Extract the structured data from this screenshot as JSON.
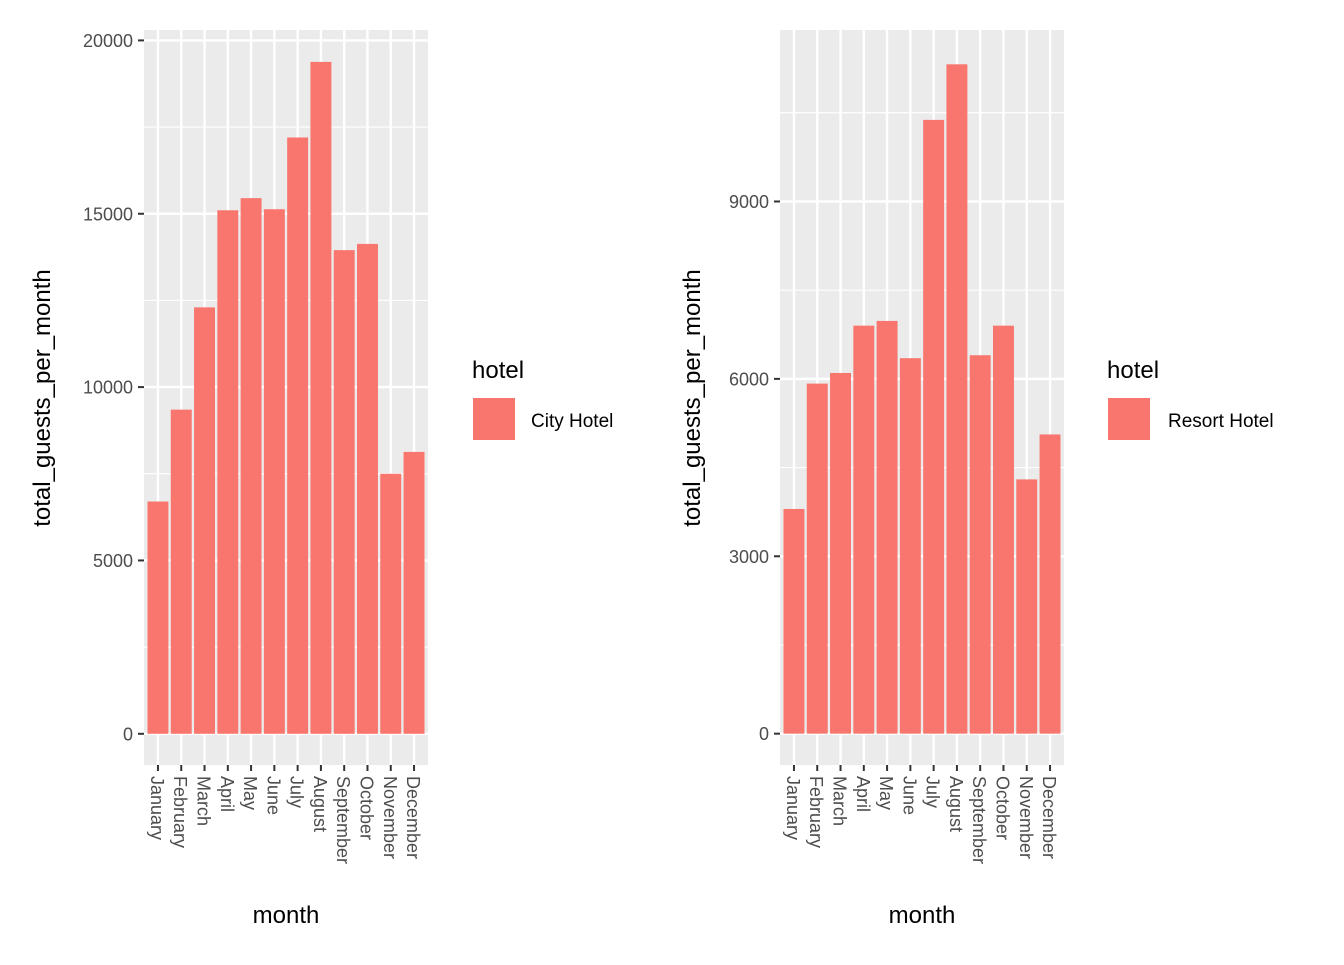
{
  "chart_data": [
    {
      "type": "bar",
      "categories": [
        "January",
        "February",
        "March",
        "April",
        "May",
        "June",
        "July",
        "August",
        "September",
        "October",
        "November",
        "December"
      ],
      "series": [
        {
          "name": "City Hotel",
          "values": [
            6700,
            9350,
            12300,
            15100,
            15450,
            15130,
            17200,
            19380,
            13950,
            14130,
            7500,
            8130
          ]
        }
      ],
      "xlabel": "month",
      "ylabel": "total_guests_per_month",
      "ylim": [
        -900,
        20300
      ],
      "yticks": [
        0,
        5000,
        10000,
        15000,
        20000
      ],
      "legend_title": "hotel",
      "legend_position": "right",
      "bar_color": "#F8766D",
      "panel_color": "#EBEBEB",
      "grid": true
    },
    {
      "type": "bar",
      "categories": [
        "January",
        "February",
        "March",
        "April",
        "May",
        "June",
        "July",
        "August",
        "September",
        "October",
        "November",
        "December"
      ],
      "series": [
        {
          "name": "Resort Hotel",
          "values": [
            3800,
            5920,
            6100,
            6900,
            6980,
            6350,
            10380,
            11320,
            6400,
            6900,
            4300,
            5060
          ]
        }
      ],
      "xlabel": "month",
      "ylabel": "total_guests_per_month",
      "ylim": [
        -530,
        11900
      ],
      "yticks": [
        0,
        3000,
        6000,
        9000
      ],
      "legend_title": "hotel",
      "legend_position": "right",
      "bar_color": "#F8766D",
      "panel_color": "#EBEBEB",
      "grid": true
    }
  ]
}
